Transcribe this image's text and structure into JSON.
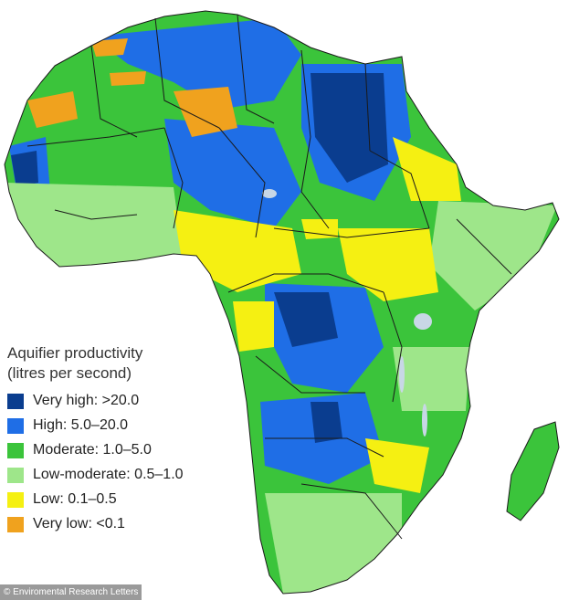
{
  "legend": {
    "title_line1": "Aquifier productivity",
    "title_line2": "(litres per second)",
    "items": [
      {
        "label": "Very high: >20.0",
        "color": "#0a3d8f"
      },
      {
        "label": "High: 5.0–20.0",
        "color": "#1f6ee6"
      },
      {
        "label": "Moderate: 1.0–5.0",
        "color": "#3bc43b"
      },
      {
        "label": "Low-moderate: 0.5–1.0",
        "color": "#9ee68a"
      },
      {
        "label": "Low: 0.1–0.5",
        "color": "#f5f012"
      },
      {
        "label": "Very low: <0.1",
        "color": "#f0a21e"
      }
    ]
  },
  "credit": "© Enviromental Research Letters",
  "colors": {
    "background": "#ffffff",
    "border_lines": "#1a1a1a",
    "lakes": "#c8d7e6"
  }
}
